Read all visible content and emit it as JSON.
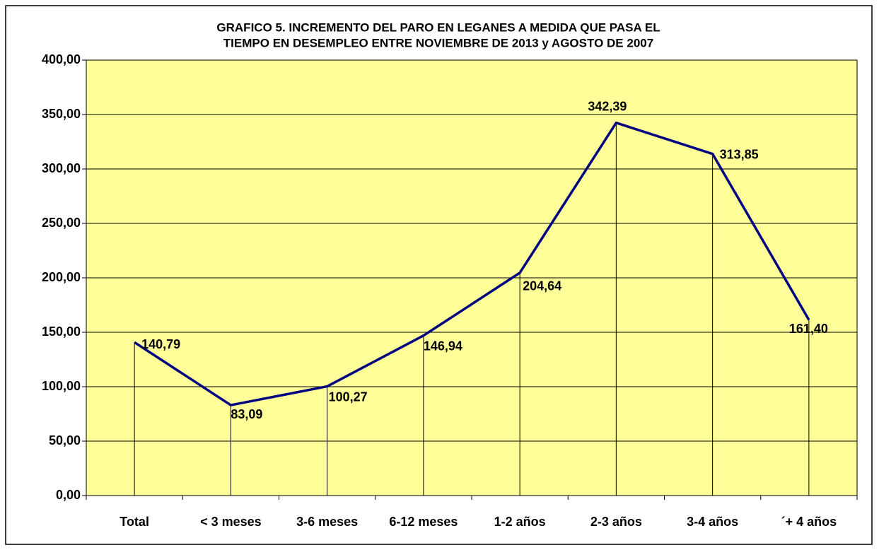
{
  "chart_data": {
    "type": "line",
    "title": [
      "GRAFICO 5. INCREMENTO DEL PARO EN LEGANES A MEDIDA QUE PASA EL",
      "TIEMPO EN DESEMPLEO ENTRE NOVIEMBRE DE 2013 y AGOSTO DE 2007"
    ],
    "categories": [
      "Total",
      "< 3 meses",
      "3-6 meses",
      "6-12 meses",
      "1-2 años",
      "2-3 años",
      "3-4 años",
      "´+ 4 años"
    ],
    "values": [
      140.79,
      83.09,
      100.27,
      146.94,
      204.64,
      342.39,
      313.85,
      161.4
    ],
    "value_labels": [
      "140,79",
      "83,09",
      "100,27",
      "146,94",
      "204,64",
      "342,39",
      "313,85",
      "161,40"
    ],
    "color": "#000080",
    "ylim": [
      0,
      400
    ],
    "yticks": [
      {
        "value": 0,
        "label": "0,00"
      },
      {
        "value": 50,
        "label": "50,00"
      },
      {
        "value": 100,
        "label": "100,00"
      },
      {
        "value": 150,
        "label": "150,00"
      },
      {
        "value": 200,
        "label": "200,00"
      },
      {
        "value": 250,
        "label": "250,00"
      },
      {
        "value": 300,
        "label": "300,00"
      },
      {
        "value": 350,
        "label": "350,00"
      },
      {
        "value": 400,
        "label": "400,00"
      }
    ],
    "grid": true,
    "drop_lines": true,
    "plot_background": "#ffff99"
  }
}
